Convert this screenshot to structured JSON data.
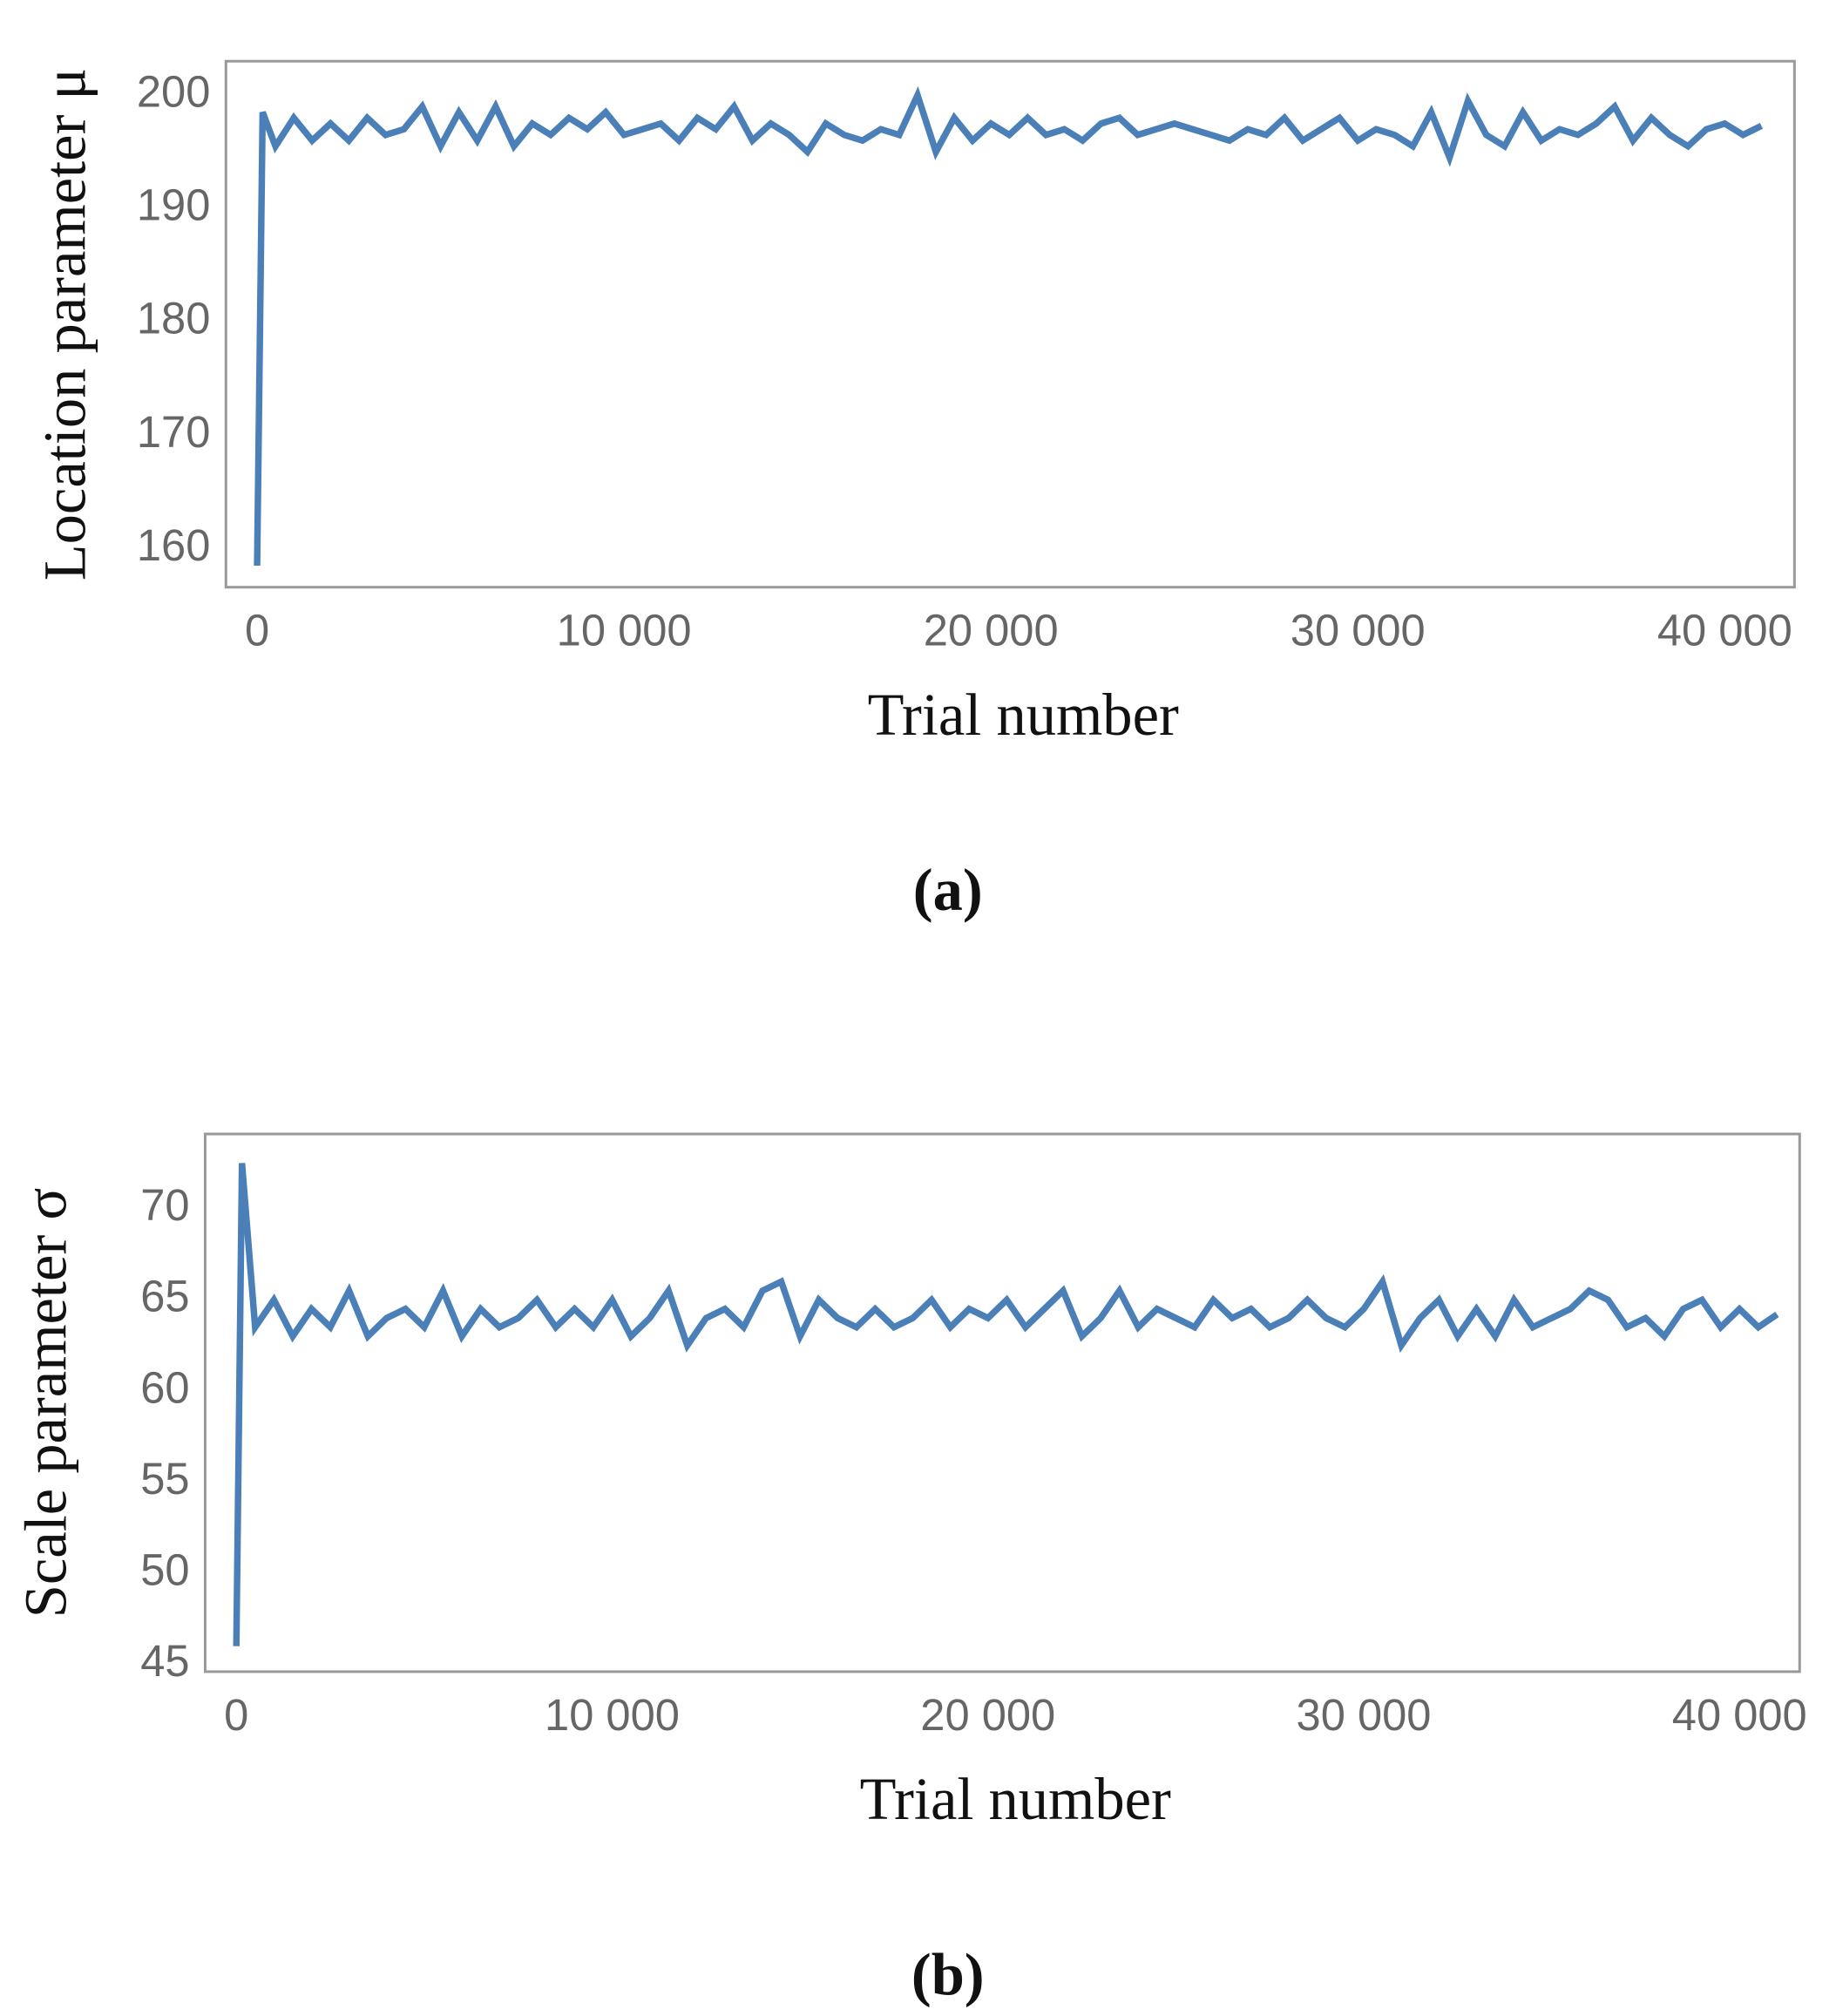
{
  "chart_data": [
    {
      "type": "line",
      "panel_label": "(a)",
      "x_label": "Trial number",
      "y_label": "Location parameter μ",
      "x": [
        0,
        150,
        500,
        1000,
        1500,
        2000,
        2500,
        3000,
        3500,
        4000,
        4500,
        5000,
        5500,
        6000,
        6500,
        7000,
        7500,
        8000,
        8500,
        9000,
        9500,
        10000,
        10500,
        11000,
        11500,
        12000,
        12500,
        13000,
        13500,
        14000,
        14500,
        15000,
        15500,
        16000,
        16500,
        17000,
        17500,
        18000,
        18500,
        19000,
        19500,
        20000,
        20500,
        21000,
        21500,
        22000,
        22500,
        23000,
        23500,
        24000,
        24500,
        25000,
        25500,
        26000,
        26500,
        27000,
        27500,
        28000,
        28500,
        29000,
        29500,
        30000,
        30500,
        31000,
        31500,
        32000,
        32500,
        33000,
        33500,
        34000,
        34500,
        35000,
        35500,
        36000,
        36500,
        37000,
        37500,
        38000,
        38500,
        39000,
        39500,
        40000,
        40500,
        41000
      ],
      "series": [
        {
          "name": "Location parameter",
          "color": "#4a7fb8",
          "values": [
            158.5,
            198.5,
            195.5,
            198,
            196,
            197.5,
            196,
            198,
            196.5,
            197,
            199,
            195.5,
            198.5,
            196,
            199,
            195.5,
            197.5,
            196.5,
            198,
            197,
            198.5,
            196.5,
            197,
            197.5,
            196,
            198,
            197,
            199,
            196,
            197.5,
            196.5,
            195,
            197.5,
            196.5,
            196,
            197,
            196.5,
            200,
            195,
            198,
            196,
            197.5,
            196.5,
            198,
            196.5,
            197,
            196,
            197.5,
            198,
            196.5,
            197,
            197.5,
            197,
            196.5,
            196,
            197,
            196.5,
            198,
            196,
            197,
            198,
            196,
            197,
            196.5,
            195.5,
            198.5,
            194.5,
            199.5,
            196.5,
            195.5,
            198.5,
            196,
            197,
            196.5,
            197.5,
            199,
            196,
            198,
            196.5,
            195.5,
            197,
            197.5,
            196.5,
            197.3
          ]
        }
      ],
      "xlim": [
        -850,
        41900
      ],
      "ylim": [
        156.6,
        203
      ],
      "xticks": [
        0,
        {
          "value": 10000,
          "label": "10 000"
        },
        {
          "value": 20000,
          "label": "20 000"
        },
        {
          "value": 30000,
          "label": "30 000"
        },
        {
          "value": 40000,
          "label": "40 000"
        }
      ],
      "yticks": [
        160,
        170,
        180,
        190,
        200
      ]
    },
    {
      "type": "line",
      "panel_label": "(b)",
      "x_label": "Trial number",
      "y_label": "Scale parameter σ",
      "x": [
        0,
        150,
        500,
        1000,
        1500,
        2000,
        2500,
        3000,
        3500,
        4000,
        4500,
        5000,
        5500,
        6000,
        6500,
        7000,
        7500,
        8000,
        8500,
        9000,
        9500,
        10000,
        10500,
        11000,
        11500,
        12000,
        12500,
        13000,
        13500,
        14000,
        14500,
        15000,
        15500,
        16000,
        16500,
        17000,
        17500,
        18000,
        18500,
        19000,
        19500,
        20000,
        20500,
        21000,
        21500,
        22000,
        22500,
        23000,
        23500,
        24000,
        24500,
        25000,
        25500,
        26000,
        26500,
        27000,
        27500,
        28000,
        28500,
        29000,
        29500,
        30000,
        30500,
        31000,
        31500,
        32000,
        32500,
        33000,
        33500,
        34000,
        34500,
        35000,
        35500,
        36000,
        36500,
        37000,
        37500,
        38000,
        38500,
        39000,
        39500,
        40000,
        40500,
        41000
      ],
      "series": [
        {
          "name": "Scale parameter",
          "color": "#4a7fb8",
          "values": [
            46,
            72.5,
            63.5,
            65,
            63,
            64.5,
            63.5,
            65.5,
            63,
            64,
            64.5,
            63.5,
            65.5,
            63,
            64.5,
            63.5,
            64,
            65,
            63.5,
            64.5,
            63.5,
            65,
            63,
            64,
            65.5,
            62.5,
            64,
            64.5,
            63.5,
            65.5,
            66,
            63,
            65,
            64,
            63.5,
            64.5,
            63.5,
            64,
            65,
            63.5,
            64.5,
            64,
            65,
            63.5,
            64.5,
            65.5,
            63,
            64,
            65.5,
            63.5,
            64.5,
            64,
            63.5,
            65,
            64,
            64.5,
            63.5,
            64,
            65,
            64,
            63.5,
            64.5,
            66,
            62.5,
            64,
            65,
            63,
            64.5,
            63,
            65,
            63.5,
            64,
            64.5,
            65.5,
            65,
            63.5,
            64,
            63,
            64.5,
            65,
            63.5,
            64.5,
            63.5,
            64.2
          ]
        }
      ],
      "xlim": [
        -830,
        41600
      ],
      "ylim": [
        44.6,
        74.1
      ],
      "xticks": [
        0,
        {
          "value": 10000,
          "label": "10 000"
        },
        {
          "value": 20000,
          "label": "20 000"
        },
        {
          "value": 30000,
          "label": "30 000"
        },
        {
          "value": 40000,
          "label": "40 000"
        }
      ],
      "yticks": [
        45,
        50,
        55,
        60,
        65,
        70
      ]
    }
  ]
}
